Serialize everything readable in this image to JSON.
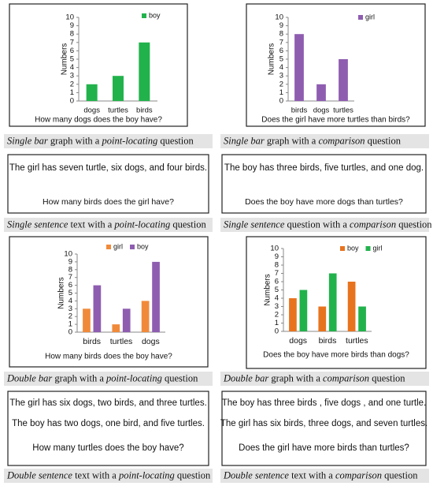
{
  "chart_data": [
    {
      "type": "bar",
      "question": "How many dogs does the boy have?",
      "y_label": "Numbers",
      "categories": [
        "dogs",
        "turtles",
        "birds"
      ],
      "series": [
        {
          "name": "boy",
          "color": "#22b24c",
          "values": [
            2,
            3,
            7
          ]
        }
      ],
      "ylim": [
        0,
        10
      ],
      "yticks": [
        0,
        1,
        2,
        3,
        4,
        5,
        6,
        7,
        8,
        9,
        10
      ]
    },
    {
      "type": "bar",
      "question": "Does the girl have more turtles than birds?",
      "y_label": "Numbers",
      "categories": [
        "birds",
        "dogs",
        "turtles"
      ],
      "series": [
        {
          "name": "girl",
          "color": "#8e5db0",
          "values": [
            8,
            2,
            5
          ]
        }
      ],
      "ylim": [
        0,
        10
      ],
      "yticks": [
        0,
        1,
        2,
        3,
        4,
        5,
        6,
        7,
        8,
        9,
        10
      ]
    },
    {
      "type": "bar",
      "question": "How many birds does the boy have?",
      "y_label": "Numbers",
      "categories": [
        "birds",
        "turtles",
        "dogs"
      ],
      "series": [
        {
          "name": "girl",
          "color": "#f08a3a",
          "values": [
            3,
            1,
            4
          ]
        },
        {
          "name": "boy",
          "color": "#8e5db0",
          "values": [
            6,
            3,
            9
          ]
        }
      ],
      "ylim": [
        0,
        10
      ],
      "yticks": [
        0,
        1,
        2,
        3,
        4,
        5,
        6,
        7,
        8,
        9,
        10
      ]
    },
    {
      "type": "bar",
      "question": "Does the boy have more birds than dogs?",
      "y_label": "Numbers",
      "categories": [
        "dogs",
        "birds",
        "turtles"
      ],
      "series": [
        {
          "name": "boy",
          "color": "#e8731e",
          "values": [
            4,
            3,
            6
          ]
        },
        {
          "name": "girl",
          "color": "#22b24c",
          "values": [
            5,
            7,
            3
          ]
        }
      ],
      "ylim": [
        0,
        10
      ],
      "yticks": [
        0,
        1,
        2,
        3,
        4,
        5,
        6,
        7,
        8,
        9,
        10
      ]
    }
  ],
  "text_panels": [
    {
      "sentences": [
        "The girl has seven turtle, six dogs, and four birds."
      ],
      "question": "How many birds does the girl have?"
    },
    {
      "sentences": [
        "The boy has three birds, five turtles, and one dog."
      ],
      "question": "Does the boy have more dogs than turtles?"
    },
    {
      "sentences": [
        "The girl has six dogs, two birds, and three turtles.",
        "The boy has two dogs, one bird, and five turtles."
      ],
      "question": "How many turtles does the boy have?"
    },
    {
      "sentences": [
        "The boy has three birds , five dogs , and one turtle.",
        "The girl has six birds, three dogs, and seven turtles."
      ],
      "question": "Does the girl have more birds than turtles?"
    }
  ],
  "captions": [
    [
      "Single bar",
      " graph with a ",
      "point-locating",
      " question"
    ],
    [
      "Single bar",
      " graph with a ",
      "comparison",
      " question"
    ],
    [
      "Single sentence",
      " text with a ",
      "point-locating",
      " question"
    ],
    [
      "Single sentence",
      " question with a ",
      "comparison",
      " question"
    ],
    [
      "Double bar",
      " graph with a ",
      "point-locating",
      " question"
    ],
    [
      "Double bar",
      " graph with a ",
      "comparison",
      " question"
    ],
    [
      "Double sentence",
      " text with a ",
      "point-locating",
      " question"
    ],
    [
      "Double sentence",
      " text with a ",
      "comparison",
      " question"
    ]
  ]
}
